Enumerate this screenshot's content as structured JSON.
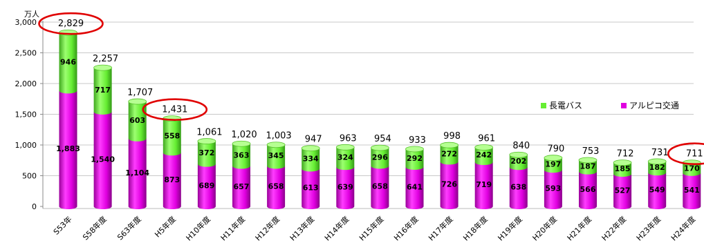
{
  "chart_data": {
    "type": "bar",
    "stacked": true,
    "y_unit_label": "万人",
    "ylim": [
      0,
      3000
    ],
    "yticks": [
      0,
      500,
      1000,
      1500,
      2000,
      2500,
      3000
    ],
    "ytick_labels": [
      "0",
      "500",
      "1,000",
      "1,500",
      "2,000",
      "2,500",
      "3,000"
    ],
    "grid": true,
    "legend_position": "right",
    "categories": [
      "S53年",
      "S58年度",
      "S63年度",
      "H5年度",
      "H10年度",
      "H11年度",
      "H12年度",
      "H13年度",
      "H14年度",
      "H15年度",
      "H16年度",
      "H17年度",
      "H18年度",
      "H19年度",
      "H20年度",
      "H21年度",
      "H22年度",
      "H23年度",
      "H24年度"
    ],
    "series": [
      {
        "name": "アルピコ交通",
        "color": "#e000e0",
        "values": [
          1883,
          1540,
          1104,
          873,
          689,
          657,
          658,
          613,
          639,
          658,
          641,
          726,
          719,
          638,
          593,
          566,
          527,
          549,
          541
        ]
      },
      {
        "name": "長電バス",
        "color": "#66ee33",
        "values": [
          946,
          717,
          603,
          558,
          372,
          363,
          345,
          334,
          324,
          296,
          292,
          272,
          242,
          202,
          197,
          187,
          185,
          182,
          170
        ]
      }
    ],
    "totals": [
      2829,
      2257,
      1707,
      1431,
      1061,
      1020,
      1003,
      947,
      963,
      954,
      933,
      998,
      961,
      840,
      790,
      753,
      712,
      731,
      711
    ],
    "total_labels": [
      "2,829",
      "2,257",
      "1,707",
      "1,431",
      "1,061",
      "1,020",
      "1,003",
      "947",
      "963",
      "954",
      "933",
      "998",
      "961",
      "840",
      "790",
      "753",
      "712",
      "731",
      "711"
    ],
    "highlighted_totals": [
      0,
      3,
      18
    ],
    "highlight_color": "#e00000"
  }
}
